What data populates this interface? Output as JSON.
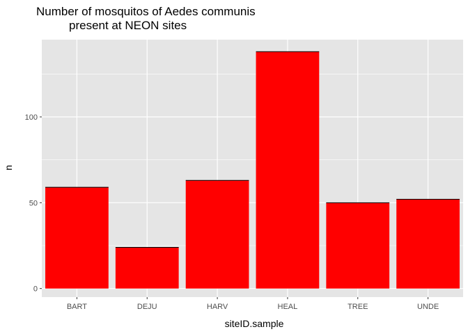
{
  "chart_data": {
    "type": "bar",
    "title_lines": [
      "Number of mosquitos of Aedes communis",
      "present at NEON sites"
    ],
    "xlabel": "siteID.sample",
    "ylabel": "n",
    "categories": [
      "BART",
      "DEJU",
      "HARV",
      "HEAL",
      "TREE",
      "UNDE"
    ],
    "values": [
      59,
      24,
      63,
      138,
      50,
      52
    ],
    "ylim": [
      -5,
      145
    ],
    "yticks": [
      0,
      50,
      100
    ],
    "ytick_labels": [
      "0",
      "50",
      "100"
    ],
    "grid": true,
    "bar_color": "#ff0000",
    "bar_outline_color": "#000000",
    "panel_background": "#e5e5e5",
    "grid_color": "#ffffff"
  }
}
